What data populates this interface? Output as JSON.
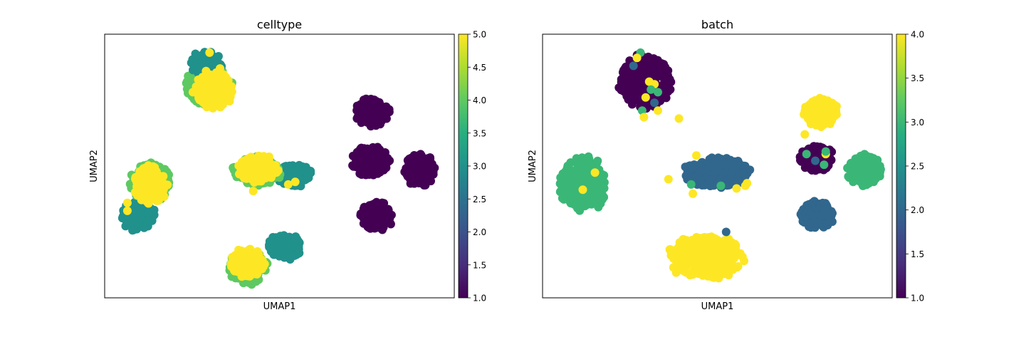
{
  "chart_data": [
    {
      "type": "scatter",
      "title": "celltype",
      "xlabel": "UMAP1",
      "ylabel": "UMAP2",
      "grid": false,
      "xticks": false,
      "yticks": false,
      "colormap": "viridis",
      "colorbar": {
        "min": 1.0,
        "max": 5.0,
        "ticks": [
          1.0,
          1.5,
          2.0,
          2.5,
          3.0,
          3.5,
          4.0,
          4.5,
          5.0
        ],
        "tick_labels": [
          "1.0",
          "1.5",
          "2.0",
          "2.5",
          "3.0",
          "3.5",
          "4.0",
          "4.5",
          "5.0"
        ]
      },
      "xlim": [
        0,
        100
      ],
      "ylim": [
        0,
        100
      ],
      "clusters": [
        {
          "name": "top-left-green",
          "value": 4.0,
          "cx": 30,
          "cy": 80,
          "rx": 8,
          "ry": 8
        },
        {
          "name": "top-left-teal",
          "value": 3.0,
          "cx": 29,
          "cy": 89,
          "rx": 5,
          "ry": 5
        },
        {
          "name": "top-left-yellow",
          "value": 5.0,
          "cx": 31,
          "cy": 78.5,
          "rx": 6.5,
          "ry": 8
        },
        {
          "name": "left-teal",
          "value": 3.0,
          "cx": 9.5,
          "cy": 31,
          "rx": 5.5,
          "ry": 6
        },
        {
          "name": "left-green",
          "value": 4.0,
          "cx": 13,
          "cy": 44,
          "rx": 6.5,
          "ry": 8.5
        },
        {
          "name": "left-yellow",
          "value": 5.0,
          "cx": 13,
          "cy": 42.5,
          "rx": 5.5,
          "ry": 8.5
        },
        {
          "name": "center-teal",
          "value": 3.0,
          "cx": 54,
          "cy": 46.5,
          "rx": 6,
          "ry": 5
        },
        {
          "name": "center-green",
          "value": 4.0,
          "cx": 43.5,
          "cy": 48,
          "rx": 8,
          "ry": 6
        },
        {
          "name": "center-yellow",
          "value": 5.0,
          "cx": 44,
          "cy": 49,
          "rx": 6.5,
          "ry": 6
        },
        {
          "name": "bottom-teal",
          "value": 3.0,
          "cx": 51.5,
          "cy": 19.5,
          "rx": 5.5,
          "ry": 5.5
        },
        {
          "name": "bottom-green",
          "value": 4.0,
          "cx": 41,
          "cy": 11.5,
          "rx": 6.5,
          "ry": 7
        },
        {
          "name": "bottom-yellow",
          "value": 5.0,
          "cx": 41,
          "cy": 13,
          "rx": 5.5,
          "ry": 6.5
        },
        {
          "name": "right-purple-top",
          "value": 1.0,
          "cx": 76.5,
          "cy": 70.5,
          "rx": 5.5,
          "ry": 6
        },
        {
          "name": "right-purple-mid",
          "value": 1.0,
          "cx": 76,
          "cy": 52,
          "rx": 6,
          "ry": 7
        },
        {
          "name": "right-purple-far",
          "value": 1.0,
          "cx": 90,
          "cy": 48.5,
          "rx": 5,
          "ry": 7
        },
        {
          "name": "right-purple-bottom",
          "value": 1.0,
          "cx": 78,
          "cy": 31,
          "rx": 5.5,
          "ry": 6
        }
      ],
      "highlight_points": [
        {
          "x": 30,
          "y": 93,
          "value": 5.0
        },
        {
          "x": 29,
          "y": 86,
          "value": 5.0
        },
        {
          "x": 33,
          "y": 87,
          "value": 5.0
        },
        {
          "x": 6.5,
          "y": 36,
          "value": 5.0
        },
        {
          "x": 6.5,
          "y": 33,
          "value": 5.0
        },
        {
          "x": 54.5,
          "y": 48.5,
          "value": 3.0
        },
        {
          "x": 54.5,
          "y": 44,
          "value": 5.0
        },
        {
          "x": 52.5,
          "y": 43,
          "value": 5.0
        },
        {
          "x": 42.5,
          "y": 40.5,
          "value": 5.0
        }
      ]
    },
    {
      "type": "scatter",
      "title": "batch",
      "xlabel": "UMAP1",
      "ylabel": "UMAP2",
      "grid": false,
      "xticks": false,
      "yticks": false,
      "colormap": "viridis",
      "colorbar": {
        "min": 1.0,
        "max": 4.0,
        "ticks": [
          1.0,
          1.5,
          2.0,
          2.5,
          3.0,
          3.5,
          4.0
        ],
        "tick_labels": [
          "1.0",
          "1.5",
          "2.0",
          "2.5",
          "3.0",
          "3.5",
          "4.0"
        ]
      },
      "xlim": [
        0,
        100
      ],
      "ylim": [
        0,
        100
      ],
      "clusters": [
        {
          "name": "top-left-purple",
          "value": 1.0,
          "cx": 29.5,
          "cy": 82,
          "rx": 8.5,
          "ry": 11.5
        },
        {
          "name": "left-green",
          "value": 3.0,
          "cx": 11.5,
          "cy": 43,
          "rx": 7.5,
          "ry": 12
        },
        {
          "name": "center-blue",
          "value": 2.0,
          "cx": 50,
          "cy": 47.5,
          "rx": 11,
          "ry": 6.5
        },
        {
          "name": "bottom-yellow",
          "value": 4.0,
          "cx": 46.5,
          "cy": 15.5,
          "rx": 12,
          "ry": 9.5
        },
        {
          "name": "right-yellow",
          "value": 4.0,
          "cx": 79.5,
          "cy": 70.5,
          "rx": 5.5,
          "ry": 6
        },
        {
          "name": "right-purple",
          "value": 1.0,
          "cx": 78.5,
          "cy": 53,
          "rx": 5.5,
          "ry": 6
        },
        {
          "name": "right-green",
          "value": 3.0,
          "cx": 92,
          "cy": 48.5,
          "rx": 5.5,
          "ry": 7
        },
        {
          "name": "right-blue",
          "value": 2.0,
          "cx": 78.5,
          "cy": 31.5,
          "rx": 5.5,
          "ry": 6
        }
      ],
      "highlight_points": [
        {
          "x": 28,
          "y": 93,
          "value": 3.0
        },
        {
          "x": 27,
          "y": 91,
          "value": 4.0
        },
        {
          "x": 26,
          "y": 88,
          "value": 2.0
        },
        {
          "x": 30.5,
          "y": 82,
          "value": 4.0
        },
        {
          "x": 32,
          "y": 81,
          "value": 4.0
        },
        {
          "x": 31,
          "y": 79,
          "value": 3.0
        },
        {
          "x": 33,
          "y": 78,
          "value": 3.0
        },
        {
          "x": 29.5,
          "y": 76,
          "value": 4.0
        },
        {
          "x": 32,
          "y": 74,
          "value": 2.0
        },
        {
          "x": 28.5,
          "y": 71,
          "value": 3.0
        },
        {
          "x": 33,
          "y": 71,
          "value": 4.0
        },
        {
          "x": 29,
          "y": 68.5,
          "value": 4.0
        },
        {
          "x": 39,
          "y": 68,
          "value": 4.0
        },
        {
          "x": 44,
          "y": 54,
          "value": 4.0
        },
        {
          "x": 36,
          "y": 45,
          "value": 4.0
        },
        {
          "x": 42.5,
          "y": 43,
          "value": 3.0
        },
        {
          "x": 43,
          "y": 39.5,
          "value": 4.0
        },
        {
          "x": 51,
          "y": 42.5,
          "value": 3.0
        },
        {
          "x": 55.5,
          "y": 41.5,
          "value": 4.0
        },
        {
          "x": 58.5,
          "y": 43.5,
          "value": 4.0
        },
        {
          "x": 58,
          "y": 42.5,
          "value": 4.0
        },
        {
          "x": 15,
          "y": 47.5,
          "value": 4.0
        },
        {
          "x": 11.5,
          "y": 41,
          "value": 4.0
        },
        {
          "x": 52.5,
          "y": 25,
          "value": 2.0
        },
        {
          "x": 75.5,
          "y": 54.5,
          "value": 3.0
        },
        {
          "x": 78,
          "y": 52,
          "value": 2.0
        },
        {
          "x": 80.5,
          "y": 50.5,
          "value": 3.0
        },
        {
          "x": 81,
          "y": 54.5,
          "value": 4.0
        },
        {
          "x": 81,
          "y": 55.5,
          "value": 3.0
        },
        {
          "x": 75,
          "y": 62,
          "value": 4.0
        }
      ]
    }
  ]
}
